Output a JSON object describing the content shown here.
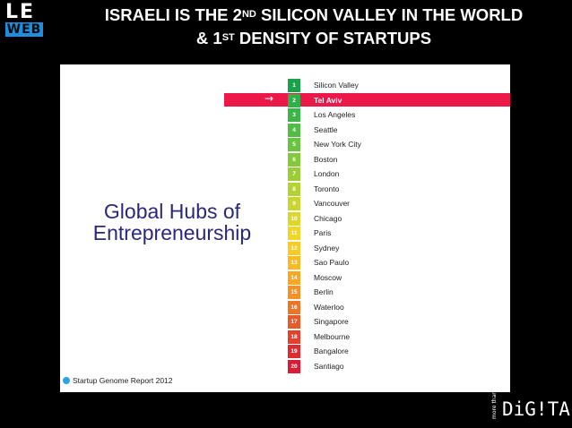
{
  "logo": {
    "line1": "LE",
    "line2": "WEB"
  },
  "header": {
    "line1_pre": "ISRAELI IS THE 2",
    "line1_sup": "ND",
    "line1_post": " SILICON VALLEY IN THE WORLD",
    "line2_pre": "& 1",
    "line2_sup": "ST",
    "line2_post": " DENSITY OF STARTUPS"
  },
  "slide": {
    "title_line1": "Global Hubs of",
    "title_line2": "Entrepreneurship",
    "arrow": "→",
    "source": "Startup Genome Report 2012",
    "highlight_color": "#ec1849",
    "rankings": [
      {
        "rank": "1",
        "city": "Silicon Valley",
        "color": "#1aa24a"
      },
      {
        "rank": "2",
        "city": "Tel Aviv",
        "color": "#2fb04a",
        "highlight": true
      },
      {
        "rank": "3",
        "city": "Los Angeles",
        "color": "#3db649"
      },
      {
        "rank": "4",
        "city": "Seattle",
        "color": "#52bd45"
      },
      {
        "rank": "5",
        "city": "New York City",
        "color": "#69c441"
      },
      {
        "rank": "6",
        "city": "Boston",
        "color": "#82c93c"
      },
      {
        "rank": "7",
        "city": "London",
        "color": "#9bcd37"
      },
      {
        "rank": "8",
        "city": "Toronto",
        "color": "#b3d233"
      },
      {
        "rank": "9",
        "city": "Vancouver",
        "color": "#cad52f"
      },
      {
        "rank": "10",
        "city": "Chicago",
        "color": "#ddd72b"
      },
      {
        "rank": "11",
        "city": "Paris",
        "color": "#f0d627"
      },
      {
        "rank": "12",
        "city": "Sydney",
        "color": "#f8cc23"
      },
      {
        "rank": "13",
        "city": "Sao Paulo",
        "color": "#f8bb22"
      },
      {
        "rank": "14",
        "city": "Moscow",
        "color": "#f7a823"
      },
      {
        "rank": "15",
        "city": "Berlin",
        "color": "#f39124"
      },
      {
        "rank": "16",
        "city": "Waterloo",
        "color": "#ee7526"
      },
      {
        "rank": "17",
        "city": "Singapore",
        "color": "#e95a2a"
      },
      {
        "rank": "18",
        "city": "Melbourne",
        "color": "#e3402d"
      },
      {
        "rank": "19",
        "city": "Bangalore",
        "color": "#de2b31"
      },
      {
        "rank": "20",
        "city": "Santiago",
        "color": "#d91c34"
      }
    ]
  },
  "brand": {
    "small": "more than",
    "big": "DiG!TAL"
  }
}
